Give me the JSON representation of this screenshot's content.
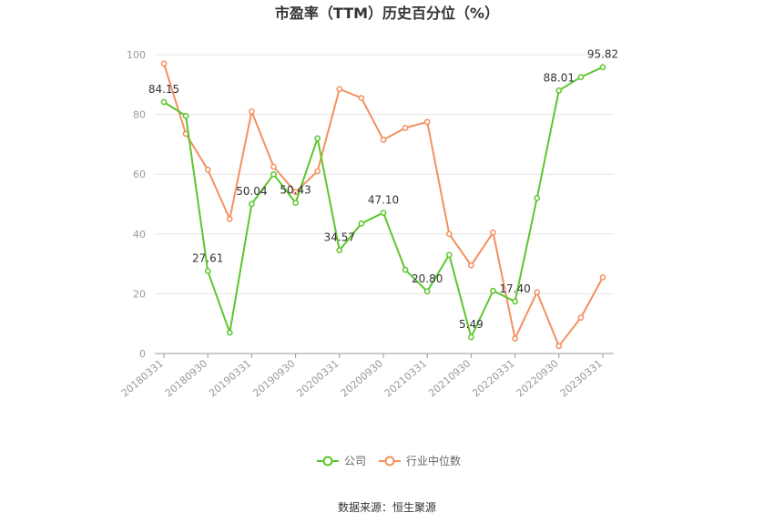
{
  "chart_data": {
    "type": "line",
    "title": "市盈率（TTM）历史百分位（%）",
    "xlabel": "",
    "ylabel": "",
    "ylim": [
      0,
      100
    ],
    "yticks": [
      "0",
      "20",
      "40",
      "60",
      "80",
      "100"
    ],
    "x_tick_labels": [
      "20180331",
      "20180930",
      "20190331",
      "20190930",
      "20200331",
      "20200930",
      "20210331",
      "20210930",
      "20220331",
      "20220930",
      "20230331"
    ],
    "categories": [
      "20180331",
      "20180630",
      "20180930",
      "20181231",
      "20190331",
      "20190630",
      "20190930",
      "20191231",
      "20200331",
      "20200630",
      "20200930",
      "20201231",
      "20210331",
      "20210630",
      "20210930",
      "20211231",
      "20220331",
      "20220630",
      "20220930",
      "20221231",
      "20230331"
    ],
    "series": [
      {
        "name": "公司",
        "color": "#5cc62d",
        "values": [
          84.15,
          79.5,
          27.61,
          7.0,
          50.04,
          60.0,
          50.43,
          72.0,
          34.57,
          43.5,
          47.1,
          28.0,
          20.8,
          33.0,
          5.49,
          21.0,
          17.4,
          52.0,
          88.01,
          92.5,
          95.82
        ],
        "data_labels": [
          "84.15",
          "",
          "27.61",
          "",
          "50.04",
          "",
          "50.43",
          "",
          "34.57",
          "",
          "47.10",
          "",
          "20.80",
          "",
          "5.49",
          "",
          "17.40",
          "",
          "88.01",
          "",
          "95.82"
        ]
      },
      {
        "name": "行业中位数",
        "color": "#f3905f",
        "values": [
          97.0,
          73.5,
          61.5,
          45.0,
          81.0,
          62.5,
          54.0,
          61.0,
          88.5,
          85.5,
          71.5,
          75.5,
          77.5,
          40.0,
          29.5,
          40.5,
          5.0,
          20.5,
          2.5,
          12.0,
          25.5
        ],
        "data_labels": []
      }
    ],
    "grid": true,
    "legend_position": "bottom"
  },
  "source": "数据来源：恒生聚源"
}
